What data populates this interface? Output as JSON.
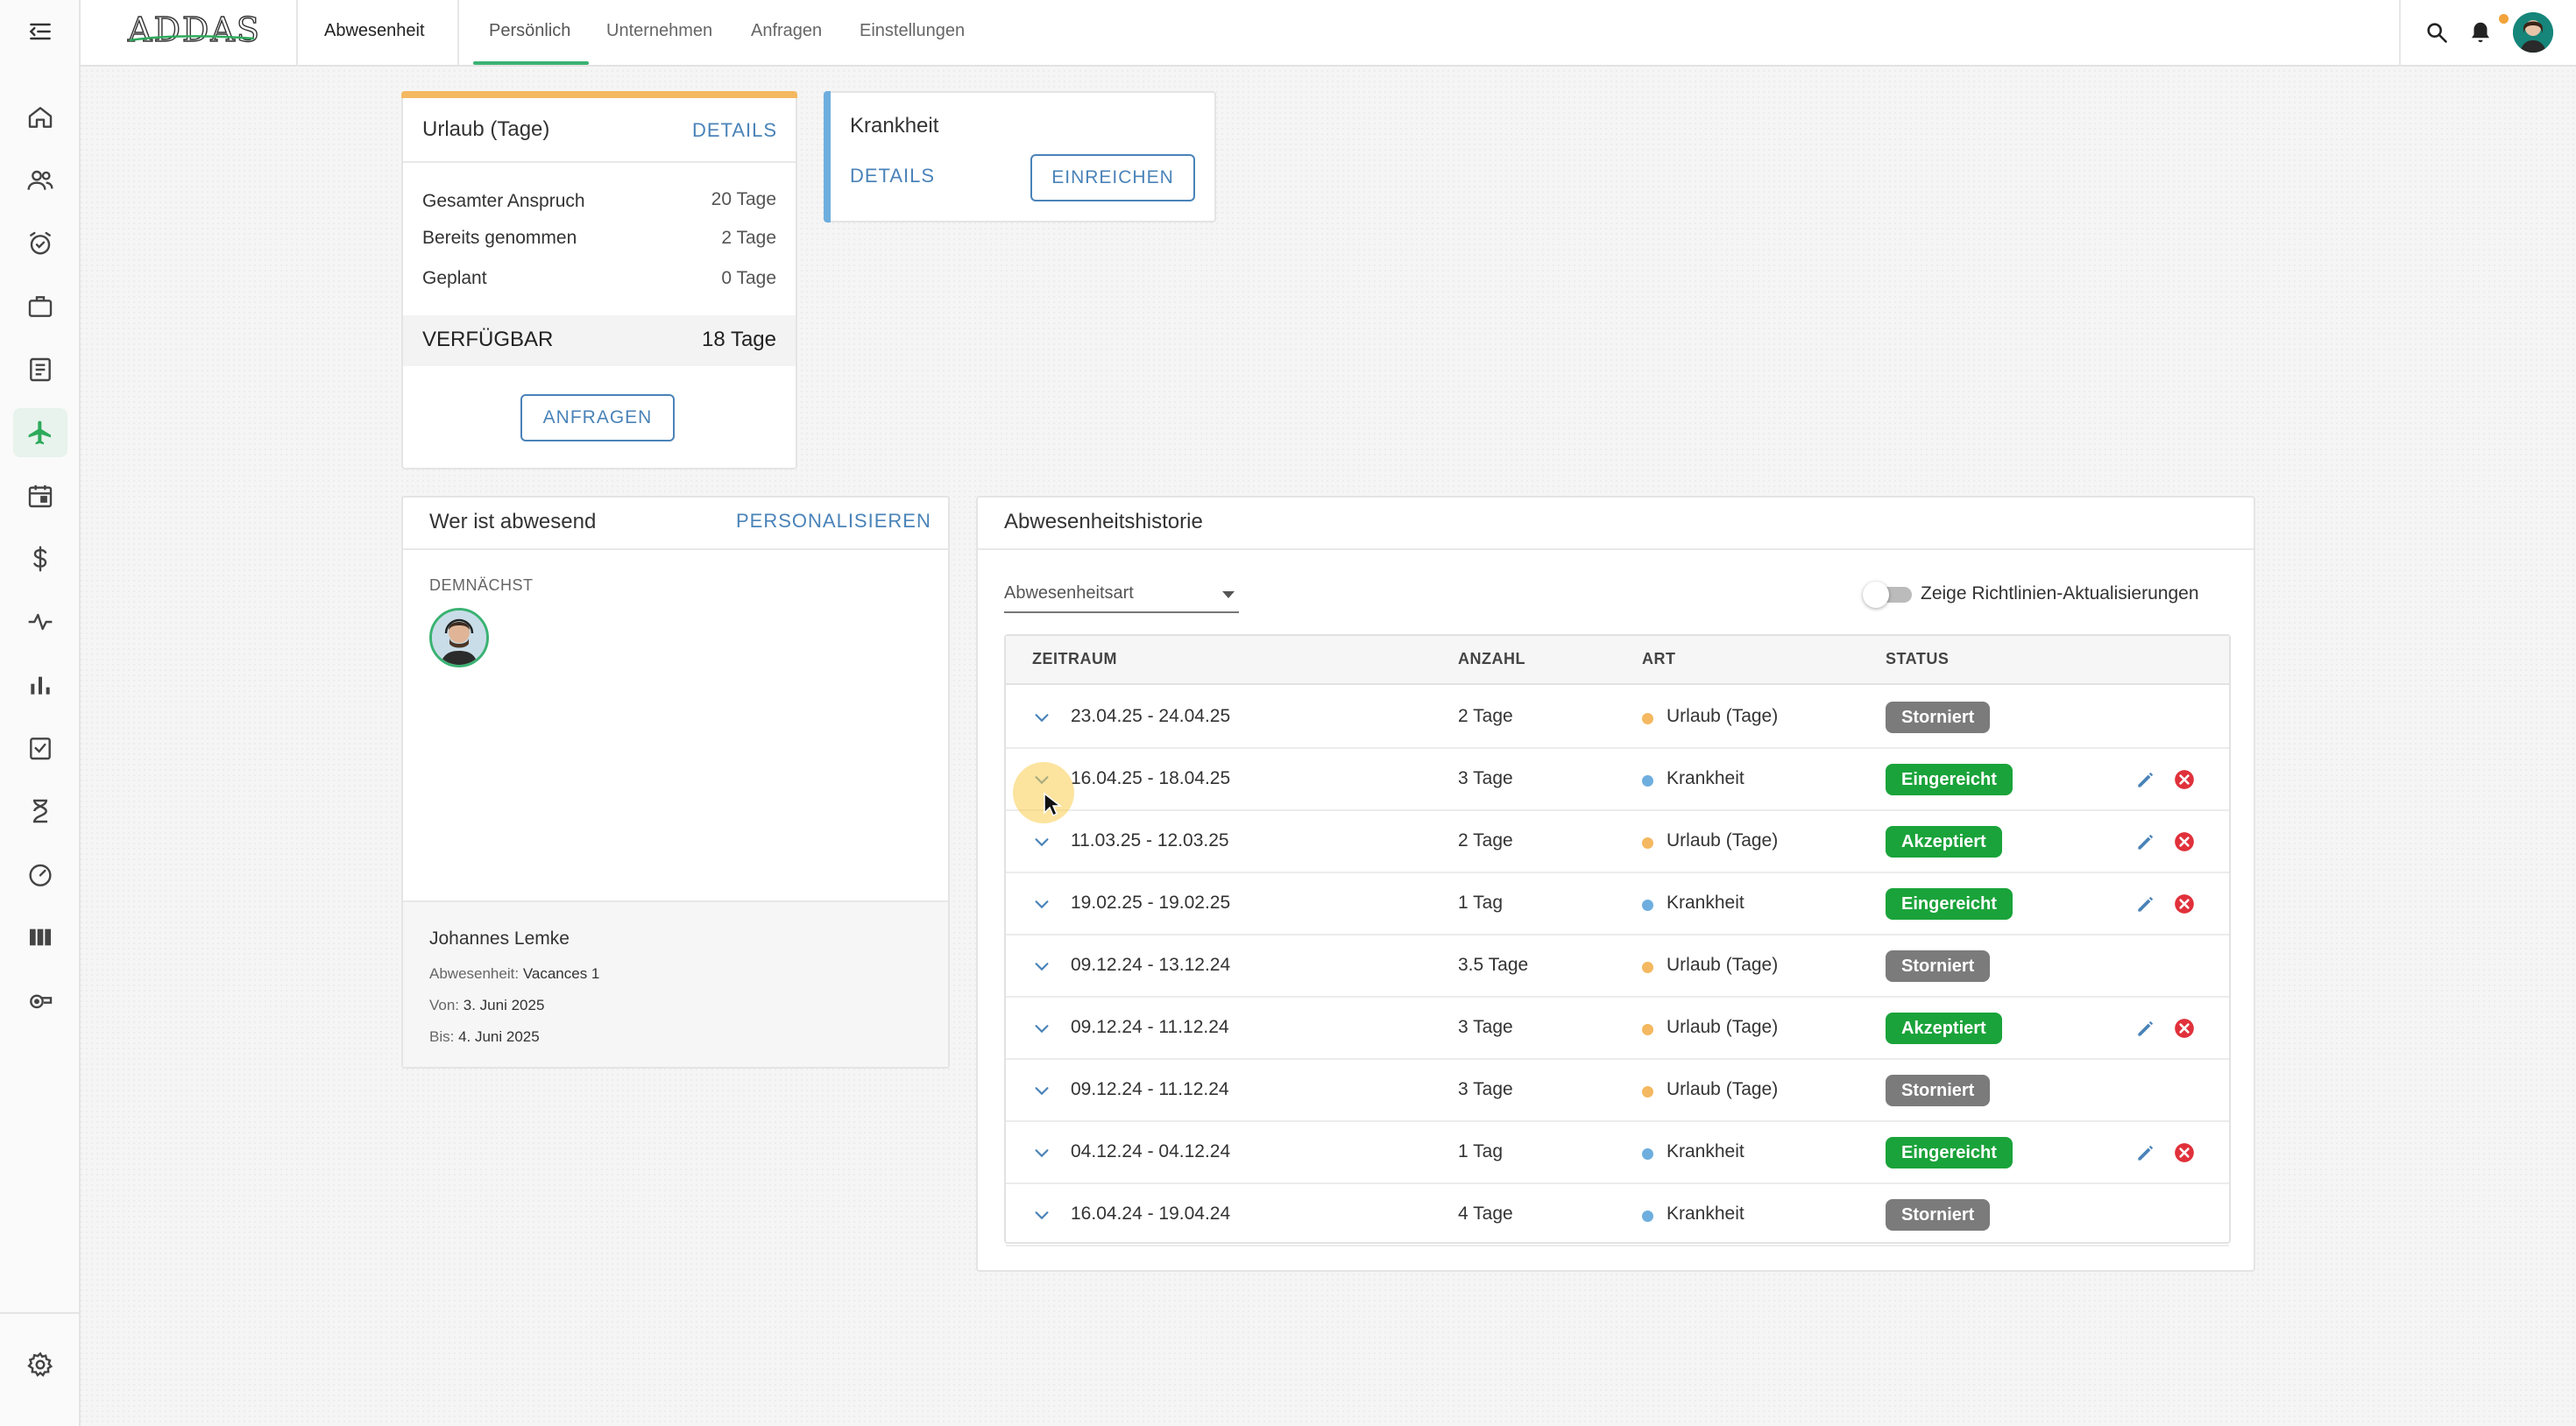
{
  "app": {
    "logo": "ADDAS",
    "module_title": "Abwesenheit"
  },
  "tabs": [
    {
      "label": "Persönlich",
      "active": true
    },
    {
      "label": "Unternehmen"
    },
    {
      "label": "Anfragen"
    },
    {
      "label": "Einstellungen"
    }
  ],
  "sidebar": {
    "items": [
      "menu-collapse-icon",
      "home-icon",
      "people-icon",
      "alarm-icon",
      "briefcase-icon",
      "document-icon",
      "airplane-icon",
      "calendar-icon",
      "dollar-icon",
      "pulse-icon",
      "bar-chart-icon",
      "task-check-icon",
      "hourglass-icon",
      "speedometer-icon",
      "columns-icon",
      "whistle-icon",
      "settings-icon"
    ],
    "active": "airplane-icon",
    "accent": "#2eaa5c"
  },
  "vacation_card": {
    "title": "Urlaub (Tage)",
    "details_label": "DETAILS",
    "rows": [
      {
        "label": "Gesamter Anspruch",
        "value": "20 Tage"
      },
      {
        "label": "Bereits genommen",
        "value": "2 Tage"
      },
      {
        "label": "Geplant",
        "value": "0 Tage"
      }
    ],
    "available_label": "VERFÜGBAR",
    "available_value": "18 Tage",
    "request_label": "ANFRAGEN",
    "accent": "#f4b860"
  },
  "sick_card": {
    "title": "Krankheit",
    "details_label": "DETAILS",
    "submit_label": "EINREICHEN",
    "accent": "#6eaede"
  },
  "absent_card": {
    "title": "Wer ist abwesend",
    "personalize_label": "PERSONALISIEREN",
    "section_label": "DEMNÄCHST",
    "person": {
      "name": "Johannes Lemke",
      "absence_label": "Abwesenheit:",
      "absence_value": "Vacances 1",
      "from_label": "Von:",
      "from_value": "3. Juni 2025",
      "to_label": "Bis:",
      "to_value": "4. Juni 2025"
    }
  },
  "history": {
    "title": "Abwesenheitshistorie",
    "filter_placeholder": "Abwesenheitsart",
    "toggle_label": "Zeige Richtlinien-Aktualisierungen",
    "columns": [
      "ZEITRAUM",
      "ANZAHL",
      "ART",
      "STATUS"
    ],
    "rows": [
      {
        "period": "23.04.25 - 24.04.25",
        "count": "2 Tage",
        "type": "Urlaub (Tage)",
        "status": "Storniert"
      },
      {
        "period": "16.04.25 - 18.04.25",
        "count": "3 Tage",
        "type": "Krankheit",
        "status": "Eingereicht"
      },
      {
        "period": "11.03.25 - 12.03.25",
        "count": "2 Tage",
        "type": "Urlaub (Tage)",
        "status": "Akzeptiert"
      },
      {
        "period": "19.02.25 - 19.02.25",
        "count": "1 Tag",
        "type": "Krankheit",
        "status": "Eingereicht"
      },
      {
        "period": "09.12.24 - 13.12.24",
        "count": "3.5 Tage",
        "type": "Urlaub (Tage)",
        "status": "Storniert"
      },
      {
        "period": "09.12.24 - 11.12.24",
        "count": "3 Tage",
        "type": "Urlaub (Tage)",
        "status": "Akzeptiert"
      },
      {
        "period": "09.12.24 - 11.12.24",
        "count": "3 Tage",
        "type": "Urlaub (Tage)",
        "status": "Storniert"
      },
      {
        "period": "04.12.24 - 04.12.24",
        "count": "1 Tag",
        "type": "Krankheit",
        "status": "Eingereicht"
      },
      {
        "period": "16.04.24 - 19.04.24",
        "count": "4 Tage",
        "type": "Krankheit",
        "status": "Storniert"
      }
    ],
    "colors": {
      "urlaub": "#f4b860",
      "krankheit": "#6eaede",
      "status_grey": "#7b7b7b",
      "status_green": "#1aa33a",
      "edit": "#4a83b8",
      "delete": "#e0313b"
    }
  }
}
